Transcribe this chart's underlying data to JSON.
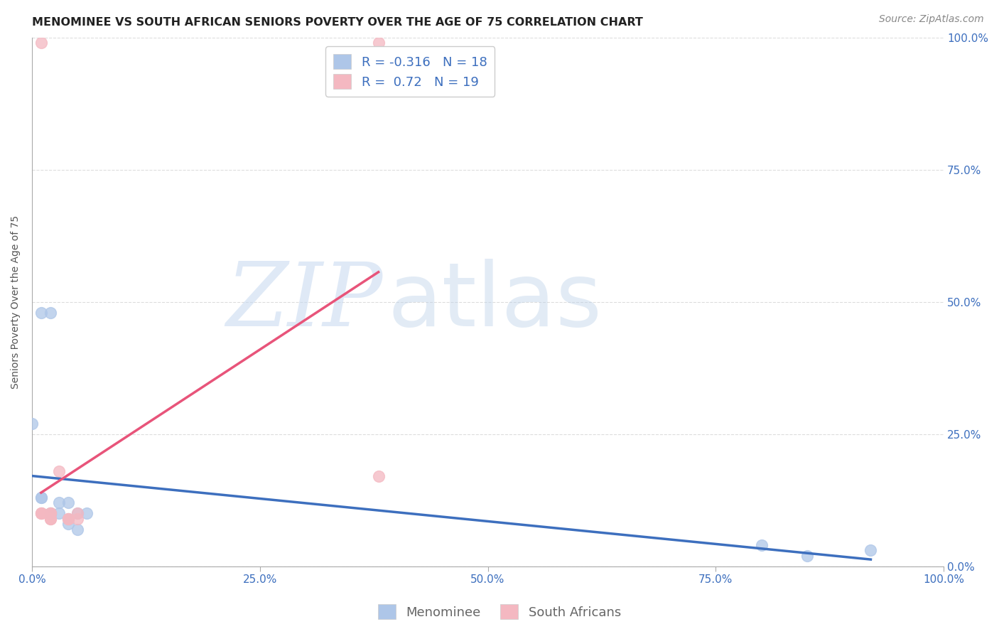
{
  "title": "MENOMINEE VS SOUTH AFRICAN SENIORS POVERTY OVER THE AGE OF 75 CORRELATION CHART",
  "source": "Source: ZipAtlas.com",
  "ylabel": "Seniors Poverty Over the Age of 75",
  "watermark_zip": "ZIP",
  "watermark_atlas": "atlas",
  "xlim": [
    0,
    1.0
  ],
  "ylim": [
    0,
    1.0
  ],
  "xticks": [
    0.0,
    0.25,
    0.5,
    0.75,
    1.0
  ],
  "yticks": [
    0.0,
    0.25,
    0.5,
    0.75,
    1.0
  ],
  "xticklabels": [
    "0.0%",
    "25.0%",
    "50.0%",
    "75.0%",
    "100.0%"
  ],
  "yticklabels": [
    "0.0%",
    "25.0%",
    "50.0%",
    "75.0%",
    "100.0%"
  ],
  "menominee_color": "#aec6e8",
  "sa_color": "#f4b8c1",
  "menominee_edge_color": "#7aaad0",
  "sa_edge_color": "#e896aa",
  "menominee_line_color": "#3d6fbe",
  "sa_line_color": "#e8547a",
  "menominee_R": -0.316,
  "menominee_N": 18,
  "sa_R": 0.72,
  "sa_N": 19,
  "menominee_x": [
    0.0,
    0.01,
    0.01,
    0.02,
    0.02,
    0.03,
    0.03,
    0.04,
    0.04,
    0.04,
    0.05,
    0.05,
    0.06,
    0.8,
    0.85,
    0.92,
    0.01,
    0.02
  ],
  "menominee_y": [
    0.27,
    0.48,
    0.13,
    0.48,
    0.1,
    0.1,
    0.12,
    0.08,
    0.09,
    0.12,
    0.07,
    0.1,
    0.1,
    0.04,
    0.02,
    0.03,
    0.13,
    0.1
  ],
  "sa_x": [
    0.01,
    0.01,
    0.01,
    0.01,
    0.01,
    0.02,
    0.02,
    0.02,
    0.02,
    0.02,
    0.02,
    0.03,
    0.04,
    0.04,
    0.04,
    0.05,
    0.05,
    0.38,
    0.38
  ],
  "sa_y": [
    0.99,
    0.1,
    0.1,
    0.1,
    0.1,
    0.09,
    0.09,
    0.09,
    0.1,
    0.1,
    0.1,
    0.18,
    0.09,
    0.09,
    0.09,
    0.09,
    0.1,
    0.99,
    0.17
  ],
  "grid_color": "#dddddd",
  "background_color": "#ffffff",
  "tick_color": "#3d6fbe",
  "title_fontsize": 11.5,
  "label_fontsize": 10,
  "tick_fontsize": 11,
  "legend_fontsize": 13,
  "source_fontsize": 10
}
